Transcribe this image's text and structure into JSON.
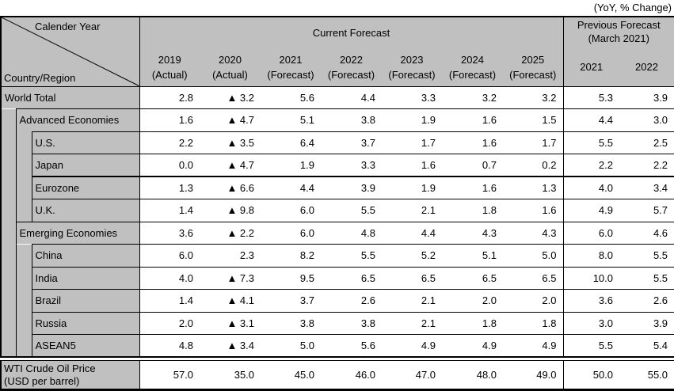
{
  "note": "(YoY, % Change)",
  "header": {
    "corner": {
      "top": "Calender Year",
      "bottom": "Country/Region"
    },
    "current_forecast_label": "Current Forecast",
    "previous_forecast_line1": "Previous Forecast",
    "previous_forecast_line2": "(March 2021)",
    "columns": [
      {
        "year": "2019",
        "kind": "(Actual)"
      },
      {
        "year": "2020",
        "kind": "(Actual)"
      },
      {
        "year": "2021",
        "kind": "(Forecast)"
      },
      {
        "year": "2022",
        "kind": "(Forecast)"
      },
      {
        "year": "2023",
        "kind": "(Forecast)"
      },
      {
        "year": "2024",
        "kind": "(Forecast)"
      },
      {
        "year": "2025",
        "kind": "(Forecast)"
      }
    ],
    "previous_columns": [
      "2021",
      "2022"
    ]
  },
  "rows": [
    {
      "label": "World Total",
      "level": 0,
      "values": [
        "2.8",
        "▲ 3.2",
        "5.6",
        "4.4",
        "3.3",
        "3.2",
        "3.2"
      ],
      "previous": [
        "5.3",
        "3.9"
      ]
    },
    {
      "label": "Advanced Economies",
      "level": 1,
      "values": [
        "1.6",
        "▲ 4.7",
        "5.1",
        "3.8",
        "1.9",
        "1.6",
        "1.5"
      ],
      "previous": [
        "4.4",
        "3.0"
      ]
    },
    {
      "label": "U.S.",
      "level": 2,
      "values": [
        "2.2",
        "▲ 3.5",
        "6.4",
        "3.7",
        "1.7",
        "1.6",
        "1.7"
      ],
      "previous": [
        "5.5",
        "2.5"
      ]
    },
    {
      "label": "Japan",
      "level": 2,
      "values": [
        "0.0",
        "▲ 4.7",
        "1.9",
        "3.3",
        "1.6",
        "0.7",
        "0.2"
      ],
      "previous": [
        "2.2",
        "2.2"
      ]
    },
    {
      "label": "Eurozone",
      "level": 2,
      "values": [
        "1.3",
        "▲ 6.6",
        "4.4",
        "3.9",
        "1.9",
        "1.6",
        "1.3"
      ],
      "previous": [
        "4.0",
        "3.4"
      ]
    },
    {
      "label": "U.K.",
      "level": 2,
      "values": [
        "1.4",
        "▲ 9.8",
        "6.0",
        "5.5",
        "2.1",
        "1.8",
        "1.6"
      ],
      "previous": [
        "4.9",
        "5.7"
      ]
    },
    {
      "label": "Emerging Economies",
      "level": 1,
      "values": [
        "3.6",
        "▲ 2.2",
        "6.0",
        "4.8",
        "4.4",
        "4.3",
        "4.3"
      ],
      "previous": [
        "6.0",
        "4.6"
      ]
    },
    {
      "label": "China",
      "level": 2,
      "values": [
        "6.0",
        "2.3",
        "8.2",
        "5.5",
        "5.2",
        "5.1",
        "5.0"
      ],
      "previous": [
        "8.0",
        "5.5"
      ]
    },
    {
      "label": "India",
      "level": 2,
      "values": [
        "4.0",
        "▲ 7.3",
        "9.5",
        "6.5",
        "6.5",
        "6.5",
        "6.5"
      ],
      "previous": [
        "10.0",
        "5.5"
      ]
    },
    {
      "label": "Brazil",
      "level": 2,
      "values": [
        "1.4",
        "▲ 4.1",
        "3.7",
        "2.6",
        "2.1",
        "2.0",
        "2.0"
      ],
      "previous": [
        "3.6",
        "2.6"
      ]
    },
    {
      "label": "Russia",
      "level": 2,
      "values": [
        "2.0",
        "▲ 3.1",
        "3.8",
        "3.8",
        "2.1",
        "1.8",
        "1.8"
      ],
      "previous": [
        "3.0",
        "3.9"
      ]
    },
    {
      "label": "ASEAN5",
      "level": 2,
      "values": [
        "4.8",
        "▲ 3.4",
        "5.0",
        "5.6",
        "4.9",
        "4.9",
        "4.9"
      ],
      "previous": [
        "5.5",
        "5.4"
      ]
    }
  ],
  "oil_row": {
    "label_line1": "WTI Crude Oil Price",
    "label_line2": "(USD per barrel)",
    "values": [
      "57.0",
      "35.0",
      "45.0",
      "46.0",
      "47.0",
      "48.0",
      "49.0"
    ],
    "previous": [
      "50.0",
      "55.0"
    ]
  },
  "colors": {
    "header_bg": "#c0c0c0",
    "grid": "#000000",
    "page_bg": "#ffffff"
  },
  "chart_data": {
    "type": "table",
    "title": "(YoY, % Change)",
    "column_groups": [
      "Current Forecast",
      "Previous Forecast (March 2021)"
    ],
    "columns": [
      "2019 (Actual)",
      "2020 (Actual)",
      "2021 (Forecast)",
      "2022 (Forecast)",
      "2023 (Forecast)",
      "2024 (Forecast)",
      "2025 (Forecast)",
      "Previous Forecast 2021",
      "Previous Forecast 2022"
    ],
    "negative_marker": "▲",
    "rows": [
      {
        "label": "World Total",
        "values": [
          2.8,
          -3.2,
          5.6,
          4.4,
          3.3,
          3.2,
          3.2,
          5.3,
          3.9
        ]
      },
      {
        "label": "Advanced Economies",
        "values": [
          1.6,
          -4.7,
          5.1,
          3.8,
          1.9,
          1.6,
          1.5,
          4.4,
          3.0
        ]
      },
      {
        "label": "U.S.",
        "values": [
          2.2,
          -3.5,
          6.4,
          3.7,
          1.7,
          1.6,
          1.7,
          5.5,
          2.5
        ]
      },
      {
        "label": "Japan",
        "values": [
          0.0,
          -4.7,
          1.9,
          3.3,
          1.6,
          0.7,
          0.2,
          2.2,
          2.2
        ]
      },
      {
        "label": "Eurozone",
        "values": [
          1.3,
          -6.6,
          4.4,
          3.9,
          1.9,
          1.6,
          1.3,
          4.0,
          3.4
        ]
      },
      {
        "label": "U.K.",
        "values": [
          1.4,
          -9.8,
          6.0,
          5.5,
          2.1,
          1.8,
          1.6,
          4.9,
          5.7
        ]
      },
      {
        "label": "Emerging Economies",
        "values": [
          3.6,
          -2.2,
          6.0,
          4.8,
          4.4,
          4.3,
          4.3,
          6.0,
          4.6
        ]
      },
      {
        "label": "China",
        "values": [
          6.0,
          2.3,
          8.2,
          5.5,
          5.2,
          5.1,
          5.0,
          8.0,
          5.5
        ]
      },
      {
        "label": "India",
        "values": [
          4.0,
          -7.3,
          9.5,
          6.5,
          6.5,
          6.5,
          6.5,
          10.0,
          5.5
        ]
      },
      {
        "label": "Brazil",
        "values": [
          1.4,
          -4.1,
          3.7,
          2.6,
          2.1,
          2.0,
          2.0,
          3.6,
          2.6
        ]
      },
      {
        "label": "Russia",
        "values": [
          2.0,
          -3.1,
          3.8,
          3.8,
          2.1,
          1.8,
          1.8,
          3.0,
          3.9
        ]
      },
      {
        "label": "ASEAN5",
        "values": [
          4.8,
          -3.4,
          5.0,
          5.6,
          4.9,
          4.9,
          4.9,
          5.5,
          5.4
        ]
      },
      {
        "label": "WTI Crude Oil Price (USD per barrel)",
        "values": [
          57.0,
          35.0,
          45.0,
          46.0,
          47.0,
          48.0,
          49.0,
          50.0,
          55.0
        ]
      }
    ]
  }
}
